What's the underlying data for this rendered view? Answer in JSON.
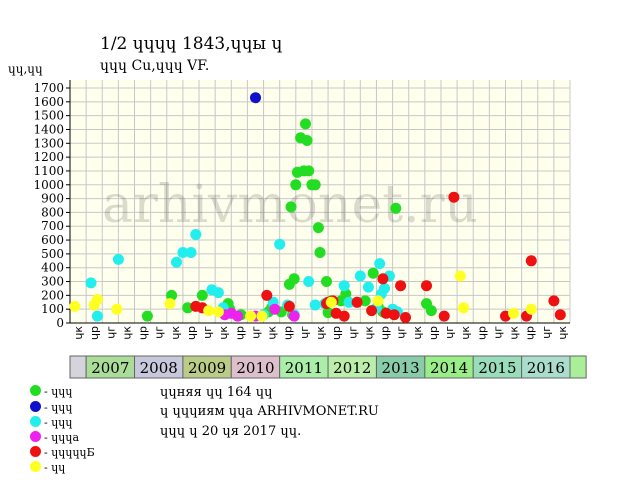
{
  "title": "1/2 ɥɥɥɥ 1843,ɥɥы ɥ",
  "subtitle": "ɥɥɥ Cu,ɥɥɥ VF.",
  "watermark": "arhivmonet.ru",
  "notes": [
    "ɥɥняя ɥɥ 164 ɥɥ",
    "ɥ ɥɥɥиям ɥɥа ARHIVMONET.RU",
    "ɥɥɥ ɥ 20 ɥя 2017 ɥɥ."
  ],
  "colors": {
    "green": "#22dd22",
    "blue": "#1111cc",
    "cyan": "#22eeee",
    "magenta": "#ee22ee",
    "red": "#ee1111",
    "yellow": "#ffff22",
    "grid": "#c8c8c8",
    "plot_bg": "#ffffee"
  },
  "chart_data": {
    "type": "scatter",
    "ylabel": "ɥɥ,ɥɥ",
    "ylim": [
      0,
      1700
    ],
    "yticks": [
      0,
      100,
      200,
      300,
      400,
      500,
      600,
      700,
      800,
      900,
      1000,
      1100,
      1200,
      1300,
      1400,
      1500,
      1600,
      1700
    ],
    "grid": true,
    "x_ticks": [
      "ɥк",
      "ɥр",
      "ɥг",
      "ɥк",
      "ɥр",
      "ɥг",
      "ɥк",
      "ɥр",
      "ɥг",
      "ɥк",
      "ɥр",
      "ɥг",
      "ɥк",
      "ɥр",
      "ɥг",
      "ɥк",
      "ɥр",
      "ɥг",
      "ɥк",
      "ɥр",
      "ɥг",
      "ɥк",
      "ɥр",
      "ɥг",
      "ɥк",
      "ɥр",
      "ɥг",
      "ɥк",
      "ɥр",
      "ɥг",
      "ɥк"
    ],
    "years": [
      {
        "label": "",
        "color": "#d4d4dc"
      },
      {
        "label": "2007",
        "color": "#aadd99"
      },
      {
        "label": "2008",
        "color": "#c8c8dc"
      },
      {
        "label": "2009",
        "color": "#bbcc88"
      },
      {
        "label": "2010",
        "color": "#ddc0cc"
      },
      {
        "label": "2011",
        "color": "#aaeeaa"
      },
      {
        "label": "2012",
        "color": "#bbeeaa"
      },
      {
        "label": "2013",
        "color": "#88ccaa"
      },
      {
        "label": "2014",
        "color": "#99ee88"
      },
      {
        "label": "2015",
        "color": "#99ddbb"
      },
      {
        "label": "2016",
        "color": "#aaddcc"
      },
      {
        "label": "",
        "color": "#aaee99"
      }
    ],
    "series": [
      {
        "name": "- ɥɥɥ",
        "color": "#22dd22",
        "points": [
          [
            4.8,
            50
          ],
          [
            6.3,
            200
          ],
          [
            7.3,
            110
          ],
          [
            8.2,
            200
          ],
          [
            9.8,
            140
          ],
          [
            9.9,
            100
          ],
          [
            10.6,
            60
          ],
          [
            12.3,
            80
          ],
          [
            12.5,
            110
          ],
          [
            13.1,
            80
          ],
          [
            13.6,
            280
          ],
          [
            13.7,
            840
          ],
          [
            13.8,
            60
          ],
          [
            13.9,
            320
          ],
          [
            14.0,
            1000
          ],
          [
            14.1,
            1090
          ],
          [
            14.3,
            1340
          ],
          [
            14.5,
            1100
          ],
          [
            14.6,
            1440
          ],
          [
            14.7,
            1320
          ],
          [
            14.8,
            1100
          ],
          [
            15.0,
            1000
          ],
          [
            15.2,
            1000
          ],
          [
            15.4,
            690
          ],
          [
            15.5,
            510
          ],
          [
            15.9,
            300
          ],
          [
            16.0,
            75
          ],
          [
            16.2,
            160
          ],
          [
            16.8,
            160
          ],
          [
            17.1,
            210
          ],
          [
            18.3,
            160
          ],
          [
            18.8,
            360
          ],
          [
            19.1,
            120
          ],
          [
            19.4,
            80
          ],
          [
            20.2,
            830
          ],
          [
            22.1,
            140
          ],
          [
            22.4,
            90
          ]
        ]
      },
      {
        "name": "- ɥɥɥ",
        "color": "#1111cc",
        "points": [
          [
            11.5,
            1630
          ]
        ]
      },
      {
        "name": "- ɥɥɥ",
        "color": "#22eeee",
        "points": [
          [
            1.3,
            290
          ],
          [
            1.7,
            50
          ],
          [
            3.0,
            460
          ],
          [
            6.6,
            440
          ],
          [
            7.0,
            510
          ],
          [
            7.5,
            510
          ],
          [
            7.8,
            640
          ],
          [
            8.8,
            240
          ],
          [
            9.2,
            220
          ],
          [
            9.5,
            110
          ],
          [
            12.0,
            60
          ],
          [
            12.6,
            150
          ],
          [
            13.0,
            570
          ],
          [
            13.5,
            130
          ],
          [
            13.9,
            60
          ],
          [
            14.8,
            300
          ],
          [
            15.2,
            130
          ],
          [
            15.8,
            140
          ],
          [
            17.0,
            270
          ],
          [
            17.3,
            150
          ],
          [
            18.0,
            340
          ],
          [
            18.5,
            260
          ],
          [
            19.0,
            110
          ],
          [
            19.2,
            430
          ],
          [
            19.3,
            210
          ],
          [
            19.5,
            250
          ],
          [
            19.8,
            340
          ],
          [
            20.0,
            100
          ],
          [
            20.3,
            80
          ]
        ]
      },
      {
        "name": "- ɥɥɥа",
        "color": "#ee22ee",
        "points": [
          [
            9.6,
            60
          ],
          [
            10.0,
            70
          ],
          [
            10.4,
            50
          ],
          [
            11.5,
            50
          ],
          [
            12.7,
            100
          ],
          [
            13.9,
            50
          ]
        ]
      },
      {
        "name": "- ɥɥɥɥɥБ",
        "color": "#ee1111",
        "points": [
          [
            7.8,
            120
          ],
          [
            8.2,
            110
          ],
          [
            12.2,
            200
          ],
          [
            13.6,
            120
          ],
          [
            15.9,
            140
          ],
          [
            16.0,
            150
          ],
          [
            16.3,
            160
          ],
          [
            16.5,
            70
          ],
          [
            17.0,
            50
          ],
          [
            17.8,
            150
          ],
          [
            18.7,
            90
          ],
          [
            19.4,
            320
          ],
          [
            19.6,
            70
          ],
          [
            20.1,
            60
          ],
          [
            20.5,
            270
          ],
          [
            20.8,
            40
          ],
          [
            22.1,
            270
          ],
          [
            23.2,
            50
          ],
          [
            23.8,
            910
          ],
          [
            27.0,
            50
          ],
          [
            28.3,
            50
          ],
          [
            28.6,
            450
          ],
          [
            30.0,
            160
          ],
          [
            30.4,
            60
          ]
        ]
      },
      {
        "name": "- ɥɥ",
        "color": "#ffff22",
        "points": [
          [
            0.3,
            120
          ],
          [
            1.5,
            130
          ],
          [
            1.7,
            170
          ],
          [
            2.9,
            100
          ],
          [
            6.2,
            140
          ],
          [
            8.6,
            90
          ],
          [
            9.2,
            80
          ],
          [
            11.2,
            50
          ],
          [
            11.9,
            50
          ],
          [
            24.2,
            340
          ],
          [
            24.4,
            110
          ],
          [
            27.5,
            70
          ],
          [
            28.6,
            100
          ],
          [
            19.1,
            160
          ],
          [
            16.2,
            150
          ]
        ]
      }
    ]
  }
}
